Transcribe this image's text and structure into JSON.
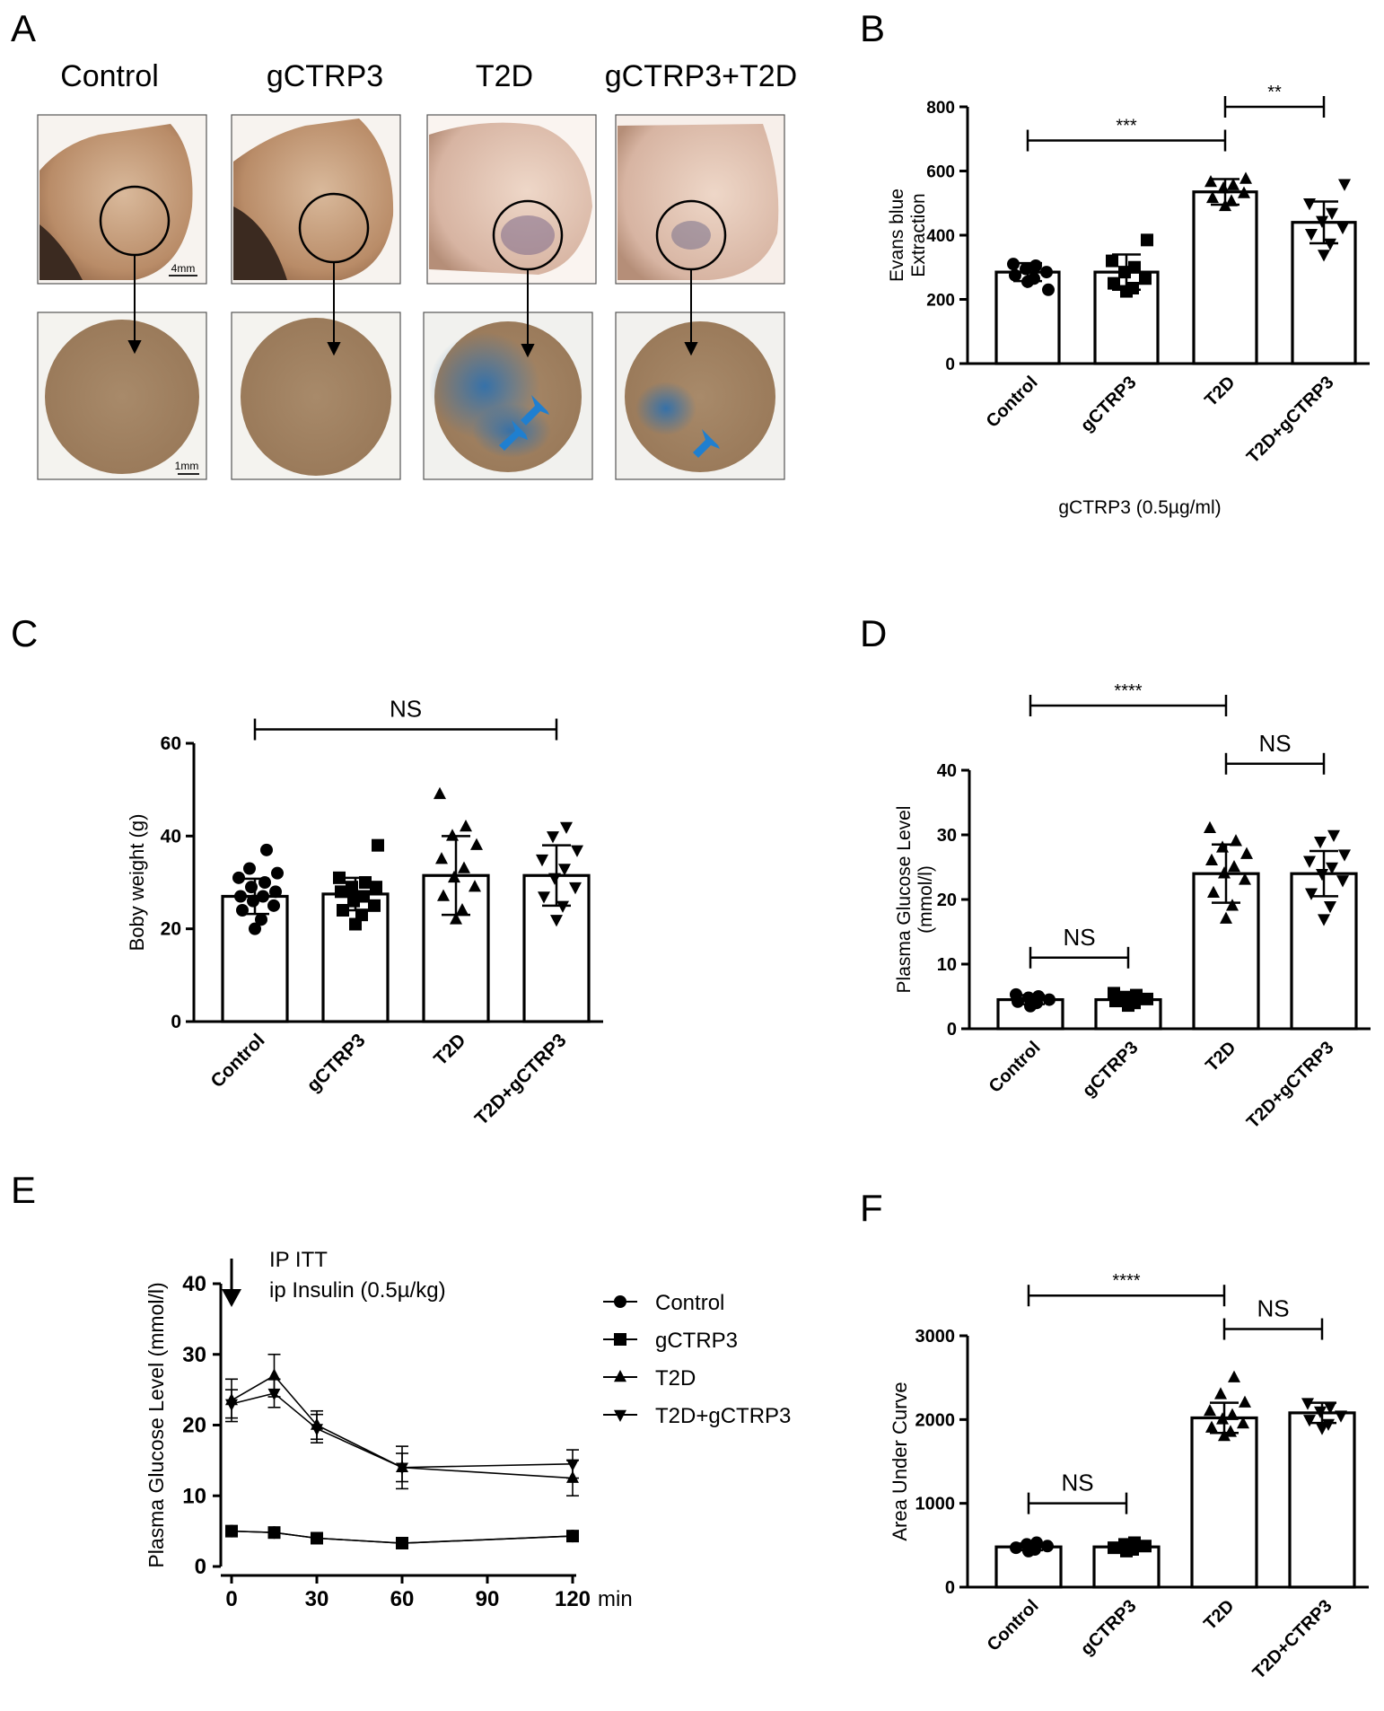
{
  "panel_letters": [
    "A",
    "B",
    "C",
    "D",
    "E",
    "F"
  ],
  "panel_a": {
    "labels": [
      "Control",
      "gCTRP3",
      "T2D",
      "gCTRP3+T2D"
    ],
    "scale_top": "4mm",
    "scale_bottom": "1mm"
  },
  "colors": {
    "dye": "#2a6fb0",
    "arrow_blue": "#1f7fd0",
    "skin": "#b88a68",
    "disc": "#9a7a5c"
  },
  "chart_data": [
    {
      "panel": "B",
      "type": "bar",
      "categories": [
        "Control",
        "gCTRP3",
        "T2D",
        "T2D+gCTRP3"
      ],
      "values": [
        285,
        285,
        535,
        440
      ],
      "errors": [
        28,
        55,
        40,
        65
      ],
      "marker": [
        "circle",
        "square",
        "triangle",
        "triangle-down"
      ],
      "points": [
        [
          255,
          265,
          275,
          285,
          295,
          305,
          310,
          230
        ],
        [
          225,
          235,
          250,
          265,
          285,
          300,
          320,
          385
        ],
        [
          490,
          505,
          515,
          530,
          545,
          555,
          565,
          575
        ],
        [
          340,
          375,
          405,
          425,
          445,
          470,
          500,
          560
        ]
      ],
      "ylim": [
        0,
        800
      ],
      "yticks": [
        0,
        200,
        400,
        600,
        800
      ],
      "ylabel_lines": [
        "Evans blue",
        "Extraction"
      ],
      "xlabel": "gCTRP3 (0.5µg/ml)",
      "brackets": [
        {
          "from": 0,
          "to": 2,
          "label": "***",
          "y": 695
        },
        {
          "from": 2,
          "to": 3,
          "label": "**",
          "y": 800
        }
      ]
    },
    {
      "panel": "C",
      "type": "bar",
      "categories": [
        "Control",
        "gCTRP3",
        "T2D",
        "T2D+gCTRP3"
      ],
      "values": [
        27,
        27.5,
        31.5,
        31.5
      ],
      "errors": [
        3.8,
        3.5,
        8.5,
        6.5
      ],
      "marker": [
        "circle",
        "square",
        "triangle",
        "triangle-down"
      ],
      "points": [
        [
          20,
          22,
          24,
          25,
          26,
          27,
          27,
          28,
          29,
          30,
          31,
          32,
          33,
          37
        ],
        [
          21,
          23,
          24,
          25,
          26,
          27,
          28,
          29,
          29,
          30,
          31,
          38
        ],
        [
          22,
          24,
          27,
          29,
          31,
          33,
          35,
          38,
          40,
          42,
          49
        ],
        [
          22,
          25,
          27,
          29,
          31,
          33,
          35,
          37,
          40,
          42
        ]
      ],
      "ylim": [
        0,
        60
      ],
      "yticks": [
        0,
        20,
        40,
        60
      ],
      "ylabel": "Boby weight (g)",
      "brackets": [
        {
          "from": 0,
          "to": 3,
          "label": "NS",
          "y": 63
        }
      ]
    },
    {
      "panel": "D",
      "type": "bar",
      "categories": [
        "Control",
        "gCTRP3",
        "T2D",
        "T2D+gCTRP3"
      ],
      "values": [
        4.5,
        4.5,
        24,
        24
      ],
      "errors": [
        0.7,
        0.6,
        4.5,
        3.5
      ],
      "marker": [
        "circle",
        "square",
        "triangle",
        "triangle-down"
      ],
      "points": [
        [
          3.5,
          4,
          4.2,
          4.5,
          4.8,
          5,
          5.3
        ],
        [
          3.6,
          4,
          4.3,
          4.6,
          4.9,
          5.2,
          5.5
        ],
        [
          17,
          19,
          21,
          23,
          24,
          25,
          26,
          27,
          28,
          29,
          31
        ],
        [
          17,
          19,
          21,
          23,
          24,
          25,
          26,
          27,
          29,
          30
        ]
      ],
      "ylim": [
        0,
        40
      ],
      "yticks": [
        0,
        10,
        20,
        30,
        40
      ],
      "ylabel_lines": [
        "Plasma Glucose Level",
        "(mmol/l)"
      ],
      "brackets": [
        {
          "from": 0,
          "to": 2,
          "label": "****",
          "y": 50
        },
        {
          "from": 0,
          "to": 1,
          "label": "NS",
          "y": 11
        },
        {
          "from": 2,
          "to": 3,
          "label": "NS",
          "y": 41
        }
      ]
    },
    {
      "panel": "E",
      "type": "line",
      "x": [
        0,
        15,
        30,
        60,
        120
      ],
      "series": [
        {
          "name": "Control",
          "marker": "circle",
          "values": [
            5,
            4.8,
            4,
            3.3,
            4.3
          ],
          "errors": [
            0,
            0,
            0,
            0,
            0
          ]
        },
        {
          "name": "gCTRP3",
          "marker": "square",
          "values": [
            5,
            4.8,
            4,
            3.3,
            4.3
          ],
          "errors": [
            0,
            0,
            0,
            0,
            0
          ]
        },
        {
          "name": "T2D",
          "marker": "triangle",
          "values": [
            23.5,
            27,
            20,
            14,
            12.5
          ],
          "errors": [
            3,
            3,
            2,
            3,
            2.5
          ]
        },
        {
          "name": "T2D+gCTRP3",
          "marker": "triangle-down",
          "values": [
            23,
            24.5,
            19.5,
            14,
            14.5
          ],
          "errors": [
            2,
            2,
            2,
            2,
            2
          ]
        }
      ],
      "xlim": [
        0,
        120
      ],
      "xticks": [
        0,
        30,
        60,
        90,
        120
      ],
      "xunit": "min",
      "ylim": [
        0,
        40
      ],
      "yticks": [
        0,
        10,
        20,
        30,
        40
      ],
      "ylabel": "Plasma Glucose Level (mmol/l)",
      "annotation_lines": [
        "IP ITT",
        "ip Insulin (0.5µ/kg)"
      ]
    },
    {
      "panel": "F",
      "type": "bar",
      "categories": [
        "Control",
        "gCTRP3",
        "T2D",
        "T2D+CTRP3"
      ],
      "values": [
        480,
        480,
        2020,
        2080
      ],
      "errors": [
        40,
        40,
        180,
        120
      ],
      "marker": [
        "circle",
        "square",
        "triangle",
        "triangle-down"
      ],
      "points": [
        [
          430,
          450,
          470,
          490,
          510,
          530
        ],
        [
          430,
          450,
          470,
          490,
          510,
          530
        ],
        [
          1800,
          1850,
          1900,
          1950,
          2000,
          2050,
          2100,
          2200,
          2300,
          2500
        ],
        [
          1900,
          1950,
          2000,
          2050,
          2100,
          2150,
          2200
        ]
      ],
      "ylim": [
        0,
        3000
      ],
      "yticks": [
        0,
        1000,
        2000,
        3000
      ],
      "ylabel": "Area Under Curve",
      "brackets": [
        {
          "from": 0,
          "to": 2,
          "label": "****",
          "y": 3480
        },
        {
          "from": 0,
          "to": 1,
          "label": "NS",
          "y": 1000
        },
        {
          "from": 2,
          "to": 3,
          "label": "NS",
          "y": 3080
        }
      ]
    }
  ]
}
